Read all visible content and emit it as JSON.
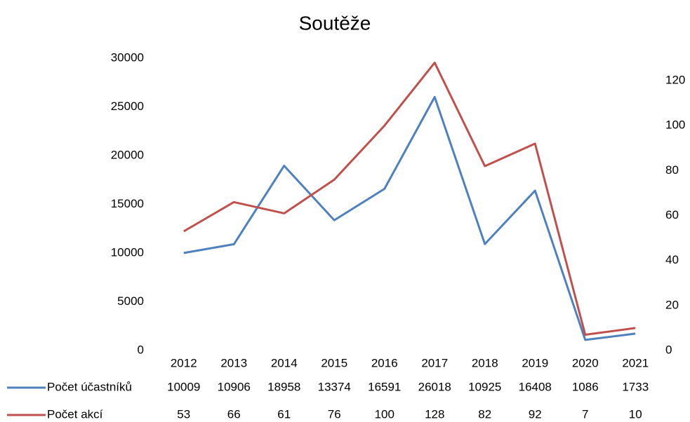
{
  "chart_data": {
    "type": "line",
    "title": "Soutěže",
    "categories": [
      "2012",
      "2013",
      "2014",
      "2015",
      "2016",
      "2017",
      "2018",
      "2019",
      "2020",
      "2021"
    ],
    "series": [
      {
        "name": "Počet účastníků",
        "color": "#4f81bd",
        "values": [
          10009,
          10906,
          18958,
          13374,
          16591,
          26018,
          10925,
          16408,
          1086,
          1733
        ]
      },
      {
        "name": "Počet akcí",
        "color": "#c0504d",
        "axis": "y2",
        "values": [
          53,
          66,
          61,
          76,
          100,
          128,
          82,
          92,
          7,
          10
        ]
      }
    ],
    "ylim": [
      0,
      30000
    ],
    "yticks": [
      0,
      5000,
      10000,
      15000,
      20000,
      25000,
      30000
    ],
    "y2lim": [
      0,
      130
    ],
    "y2ticks": [
      0,
      20,
      40,
      60,
      80,
      100,
      120
    ],
    "grid": false
  }
}
